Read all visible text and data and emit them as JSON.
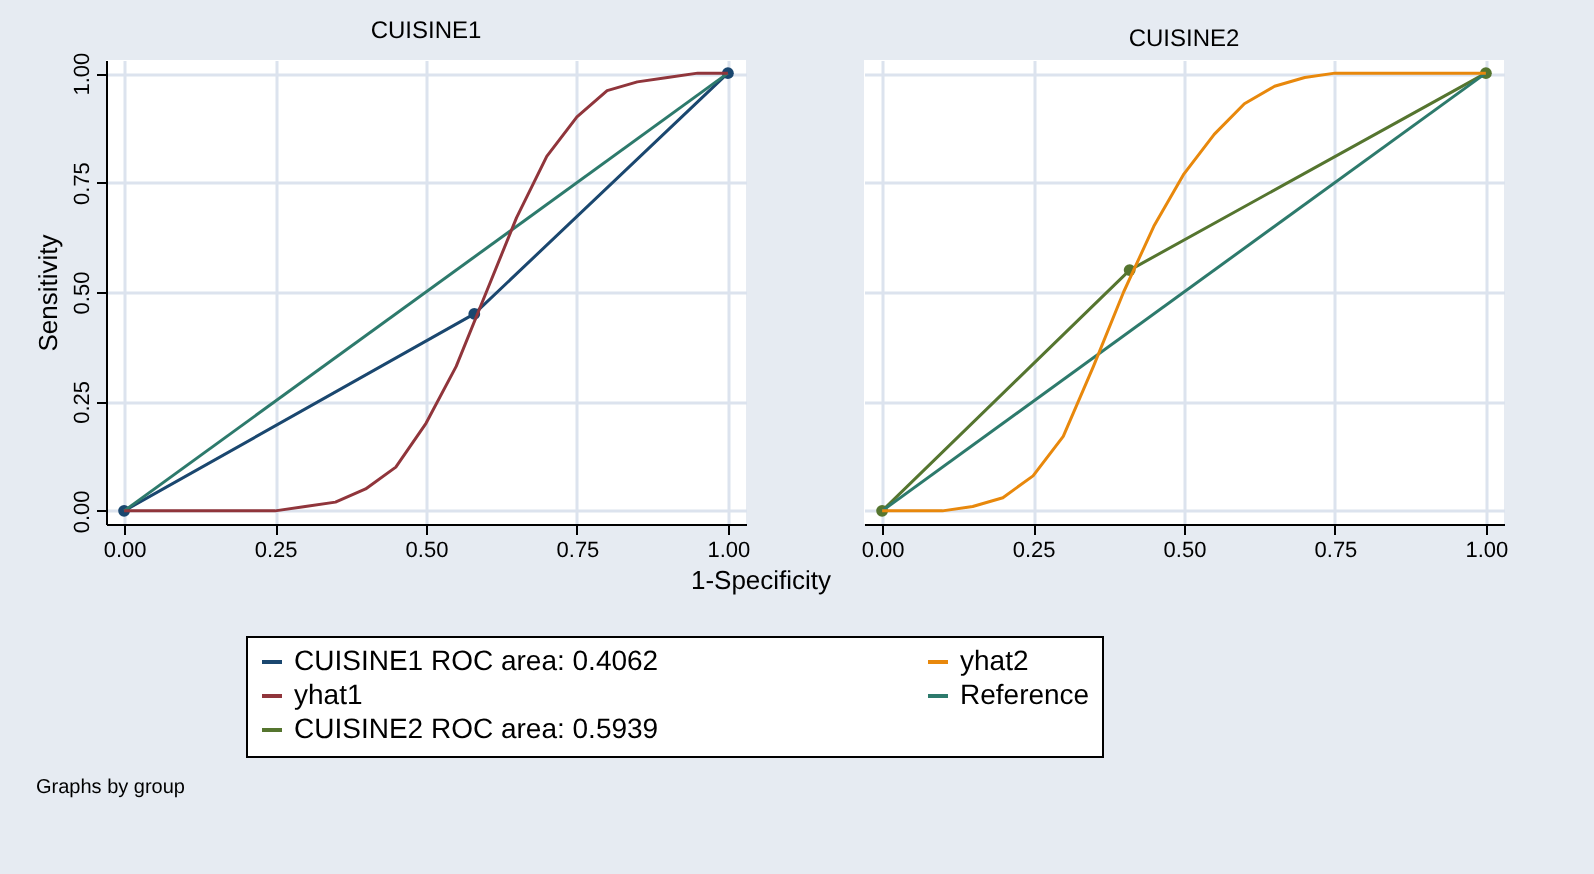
{
  "chart_data": [
    {
      "type": "line",
      "title": "CUISINE1",
      "xlabel": "1-Specificity",
      "ylabel": "Sensitivity",
      "annotations": [
        "Graphs by group"
      ],
      "xlim": [
        -0.03,
        1.03
      ],
      "ylim": [
        -0.03,
        1.03
      ],
      "xticks": [
        {
          "value": 0,
          "label": "0.00"
        },
        {
          "value": 0.25,
          "label": "0.25"
        },
        {
          "value": 0.5,
          "label": "0.50"
        },
        {
          "value": 0.75,
          "label": "0.75"
        },
        {
          "value": 1,
          "label": "1.00"
        }
      ],
      "yticks": [
        {
          "value": 0,
          "label": "0.00"
        },
        {
          "value": 0.25,
          "label": "0.25"
        },
        {
          "value": 0.5,
          "label": "0.50"
        },
        {
          "value": 0.75,
          "label": "0.75"
        },
        {
          "value": 1,
          "label": "1.00"
        }
      ],
      "grid": true,
      "legend": "bottom",
      "series": [
        {
          "name": "CUISINE1 ROC area: 0.4062",
          "color": "#1a476f",
          "marker": "circle",
          "x": [
            0,
            0.58,
            1
          ],
          "values": [
            0,
            0.45,
            1
          ]
        },
        {
          "name": "Reference",
          "color": "#2d7a6c",
          "x": [
            0,
            1
          ],
          "values": [
            0,
            1
          ]
        },
        {
          "name": "yhat1",
          "color": "#90353b",
          "x": [
            0,
            0.05,
            0.1,
            0.15,
            0.2,
            0.25,
            0.3,
            0.35,
            0.4,
            0.45,
            0.5,
            0.55,
            0.6,
            0.65,
            0.7,
            0.75,
            0.8,
            0.85,
            0.9,
            0.95,
            1
          ],
          "values": [
            0,
            0,
            0,
            0,
            0,
            0,
            0.01,
            0.02,
            0.05,
            0.1,
            0.2,
            0.33,
            0.5,
            0.67,
            0.81,
            0.9,
            0.96,
            0.98,
            0.99,
            1,
            1
          ]
        }
      ]
    },
    {
      "type": "line",
      "title": "CUISINE2",
      "tick_labels": "x",
      "xlim": [
        -0.03,
        1.03
      ],
      "ylim": [
        -0.03,
        1.03
      ],
      "xticks": [
        {
          "value": 0,
          "label": "0.00"
        },
        {
          "value": 0.25,
          "label": "0.25"
        },
        {
          "value": 0.5,
          "label": "0.50"
        },
        {
          "value": 0.75,
          "label": "0.75"
        },
        {
          "value": 1,
          "label": "1.00"
        }
      ],
      "yticks": [
        {
          "value": 0,
          "label": null
        },
        {
          "value": 0.25,
          "label": null
        },
        {
          "value": 0.5,
          "label": null
        },
        {
          "value": 0.75,
          "label": null
        },
        {
          "value": 1,
          "label": null
        }
      ],
      "grid": true,
      "legend": "bottom",
      "series": [
        {
          "name": "CUISINE2 ROC area: 0.5939",
          "color": "#55752f",
          "marker": "circle",
          "x": [
            0,
            0.41,
            1
          ],
          "values": [
            0,
            0.55,
            1
          ]
        },
        {
          "name": "Reference",
          "color": "#2d7a6c",
          "x": [
            0,
            1
          ],
          "values": [
            0,
            1
          ]
        },
        {
          "name": "yhat2",
          "color": "#e8880c",
          "x": [
            0,
            0.05,
            0.1,
            0.15,
            0.2,
            0.25,
            0.3,
            0.35,
            0.4,
            0.45,
            0.5,
            0.55,
            0.6,
            0.65,
            0.7,
            0.75,
            0.8,
            0.85,
            0.9,
            0.95,
            1
          ],
          "values": [
            0,
            0,
            0,
            0.01,
            0.03,
            0.08,
            0.17,
            0.33,
            0.5,
            0.65,
            0.77,
            0.86,
            0.93,
            0.97,
            0.99,
            1,
            1,
            1,
            1,
            1,
            1
          ]
        }
      ]
    }
  ]
}
